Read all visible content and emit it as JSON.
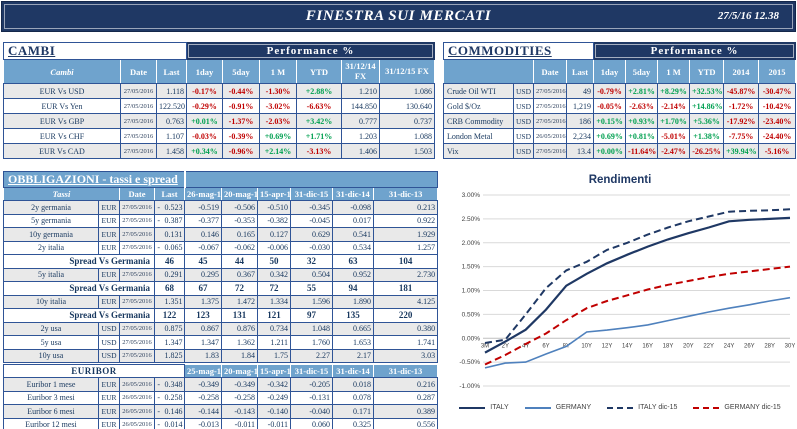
{
  "page": {
    "title": "FINESTRA SUI MERCATI",
    "datetime": "27/5/16 12.38"
  },
  "colors": {
    "navy": "#1F3864",
    "header_blue": "#6FA3CD",
    "positive": "#00A050",
    "negative": "#C00000",
    "row_alt": "#E9E9E9",
    "italy_line": "#1F3864",
    "germany_line": "#4F81BD",
    "italy_dic15_line": "#1F3864",
    "germany_dic15_line": "#C00000",
    "grid": "#D9D9D9"
  },
  "cambi": {
    "title": "CAMBI",
    "performance_label": "Performance %",
    "columns": [
      "Cambi",
      "Date",
      "Last",
      "1day",
      "5day",
      "1 M",
      "YTD",
      "31/12/14 FX",
      "31/12/15  FX"
    ],
    "rows": [
      {
        "name": "EUR Vs USD",
        "date": "27/05/2016",
        "last": "1.118",
        "perf": [
          "-0.17%",
          "-0.44%",
          "-1.30%",
          "+2.88%"
        ],
        "fx": [
          "1.210",
          "1.086"
        ]
      },
      {
        "name": "EUR Vs Yen",
        "date": "27/05/2016",
        "last": "122.520",
        "perf": [
          "-0.29%",
          "-0.91%",
          "-3.02%",
          "-6.63%"
        ],
        "fx": [
          "144.850",
          "130.640"
        ]
      },
      {
        "name": "EUR Vs GBP",
        "date": "27/05/2016",
        "last": "0.763",
        "perf": [
          "+0.01%",
          "-1.37%",
          "-2.03%",
          "+3.42%"
        ],
        "fx": [
          "0.777",
          "0.737"
        ]
      },
      {
        "name": "EUR Vs CHF",
        "date": "27/05/2016",
        "last": "1.107",
        "perf": [
          "-0.03%",
          "-0.39%",
          "+0.69%",
          "+1.71%"
        ],
        "fx": [
          "1.203",
          "1.088"
        ]
      },
      {
        "name": "EUR Vs CAD",
        "date": "27/05/2016",
        "last": "1.458",
        "perf": [
          "+0.34%",
          "-0.96%",
          "+2.14%",
          "-3.13%"
        ],
        "fx": [
          "1.406",
          "1.503"
        ]
      }
    ]
  },
  "commodities": {
    "title": "COMMODITIES",
    "performance_label": "Performance %",
    "columns": [
      "",
      "Date",
      "Last",
      "1day",
      "5day",
      "1 M",
      "YTD",
      "2014",
      "2015"
    ],
    "rows": [
      {
        "name": "Crude Oil WTI",
        "ccy": "USD",
        "date": "27/05/2016",
        "last": "49",
        "perf": [
          "-0.79%",
          "+2.81%",
          "+8.29%",
          "+32.53%"
        ],
        "years": [
          "-45.87%",
          "-30.47%"
        ]
      },
      {
        "name": "Gold $/Oz",
        "ccy": "USD",
        "date": "27/05/2016",
        "last": "1,219",
        "perf": [
          "-0.05%",
          "-2.63%",
          "-2.14%",
          "+14.86%"
        ],
        "years": [
          "-1.72%",
          "-10.42%"
        ]
      },
      {
        "name": "CRB Commodity",
        "ccy": "USD",
        "date": "27/05/2016",
        "last": "186",
        "perf": [
          "+0.15%",
          "+0.93%",
          "+1.70%",
          "+5.36%"
        ],
        "years": [
          "-17.92%",
          "-23.40%"
        ]
      },
      {
        "name": "London Metal",
        "ccy": "USD",
        "date": "26/05/2016",
        "last": "2,234",
        "perf": [
          "+0.69%",
          "+0.81%",
          "-5.01%",
          "+1.38%"
        ],
        "years": [
          "-7.75%",
          "-24.40%"
        ]
      },
      {
        "name": "Vix",
        "ccy": "USD",
        "date": "27/05/2016",
        "last": "13.4",
        "perf": [
          "+0.00%",
          "-11.64%",
          "-2.47%",
          "-26.25%"
        ],
        "years": [
          "+39.94%",
          "-5.16%"
        ]
      }
    ]
  },
  "obbligazioni": {
    "title": "OBBLIGAZIONI - tassi e spread",
    "columns": [
      "Tassi",
      "Date",
      "Last",
      "26-mag-16",
      "20-mag-16",
      "15-apr-16",
      "31-dic-15",
      "31-dic-14",
      "31-dic-13"
    ],
    "rows": [
      {
        "type": "data",
        "shade": "g",
        "name": "2y germania",
        "ccy": "EUR",
        "date": "27/05/2016",
        "neg": "-",
        "last": "0.523",
        "vals": [
          "-0.519",
          "-0.506",
          "-0.510",
          "-0.345",
          "-0.098",
          "0.213"
        ]
      },
      {
        "type": "data",
        "shade": "w",
        "name": "5y germania",
        "ccy": "EUR",
        "date": "27/05/2016",
        "neg": "-",
        "last": "0.387",
        "vals": [
          "-0.377",
          "-0.353",
          "-0.382",
          "-0.045",
          "0.017",
          "0.922"
        ]
      },
      {
        "type": "data",
        "shade": "g",
        "name": "10y germania",
        "ccy": "EUR",
        "date": "27/05/2016",
        "neg": "",
        "last": "0.131",
        "vals": [
          "0.146",
          "0.165",
          "0.127",
          "0.629",
          "0.541",
          "1.929"
        ]
      },
      {
        "type": "data",
        "shade": "w",
        "name": "2y italia",
        "ccy": "EUR",
        "date": "27/05/2016",
        "neg": "-",
        "last": "0.065",
        "vals": [
          "-0.067",
          "-0.062",
          "-0.006",
          "-0.030",
          "0.534",
          "1.257"
        ]
      },
      {
        "type": "spread",
        "shade": "w",
        "name": "Spread Vs Germania",
        "last": "46",
        "vals": [
          "45",
          "44",
          "50",
          "32",
          "63",
          "104"
        ]
      },
      {
        "type": "data",
        "shade": "g",
        "name": "5y italia",
        "ccy": "EUR",
        "date": "27/05/2016",
        "neg": "",
        "last": "0.291",
        "vals": [
          "0.295",
          "0.367",
          "0.342",
          "0.504",
          "0.952",
          "2.730"
        ]
      },
      {
        "type": "spread",
        "shade": "w",
        "name": "Spread Vs Germania",
        "last": "68",
        "vals": [
          "67",
          "72",
          "72",
          "55",
          "94",
          "181"
        ]
      },
      {
        "type": "data",
        "shade": "g",
        "name": "10y italia",
        "ccy": "EUR",
        "date": "27/05/2016",
        "neg": "",
        "last": "1.351",
        "vals": [
          "1.375",
          "1.472",
          "1.334",
          "1.596",
          "1.890",
          "4.125"
        ]
      },
      {
        "type": "spread",
        "shade": "w",
        "name": "Spread Vs Germania",
        "last": "122",
        "vals": [
          "123",
          "131",
          "121",
          "97",
          "135",
          "220"
        ]
      },
      {
        "type": "data",
        "shade": "g",
        "name": "2y usa",
        "ccy": "USD",
        "date": "27/05/2016",
        "neg": "",
        "last": "0.875",
        "vals": [
          "0.867",
          "0.876",
          "0.734",
          "1.048",
          "0.665",
          "0.380"
        ]
      },
      {
        "type": "data",
        "shade": "w",
        "name": "5y usa",
        "ccy": "USD",
        "date": "27/05/2016",
        "neg": "",
        "last": "1.347",
        "vals": [
          "1.347",
          "1.362",
          "1.211",
          "1.760",
          "1.653",
          "1.741"
        ]
      },
      {
        "type": "data",
        "shade": "g",
        "name": "10y usa",
        "ccy": "USD",
        "date": "27/05/2016",
        "neg": "",
        "last": "1.825",
        "vals": [
          "1.83",
          "1.84",
          "1.75",
          "2.27",
          "2.17",
          "3.03"
        ]
      }
    ]
  },
  "euribor": {
    "label": "EURIBOR",
    "columns": [
      "25-mag-16",
      "20-mag-16",
      "15-apr-16",
      "31-dic-15",
      "31-dic-14",
      "31-dic-13"
    ],
    "rows": [
      {
        "shade": "g",
        "name": "Euribor 1 mese",
        "ccy": "EUR",
        "date": "26/05/2016",
        "neg": "-",
        "last": "0.348",
        "vals": [
          "-0.349",
          "-0.349",
          "-0.342",
          "-0.205",
          "0.018",
          "0.216"
        ]
      },
      {
        "shade": "w",
        "name": "Euribor 3 mesi",
        "ccy": "EUR",
        "date": "26/05/2016",
        "neg": "-",
        "last": "0.258",
        "vals": [
          "-0.258",
          "-0.258",
          "-0.249",
          "-0.131",
          "0.078",
          "0.287"
        ]
      },
      {
        "shade": "g",
        "name": "Euribor 6 mesi",
        "ccy": "EUR",
        "date": "26/05/2016",
        "neg": "-",
        "last": "0.146",
        "vals": [
          "-0.144",
          "-0.143",
          "-0.140",
          "-0.040",
          "0.171",
          "0.389"
        ]
      },
      {
        "shade": "w",
        "name": "Euribor 12 mesi",
        "ccy": "EUR",
        "date": "26/05/2016",
        "neg": "-",
        "last": "0.014",
        "vals": [
          "-0.013",
          "-0.011",
          "-0.011",
          "0.060",
          "0.325",
          "0.556"
        ]
      }
    ]
  },
  "chart_data": {
    "type": "line",
    "title": "Rendimenti",
    "x": [
      "3M",
      "2Y",
      "4Y",
      "6Y",
      "8Y",
      "10Y",
      "12Y",
      "14Y",
      "16Y",
      "18Y",
      "20Y",
      "22Y",
      "24Y",
      "26Y",
      "28Y",
      "30Y"
    ],
    "ylim": [
      -1.0,
      3.0
    ],
    "ytick_step": 0.5,
    "ylabel_format": "percent_2dp",
    "grid": true,
    "legend_position": "bottom",
    "series": [
      {
        "name": "ITALY",
        "style": "solid",
        "color": "#1F3864",
        "width": 2.2,
        "values": [
          -0.3,
          -0.07,
          0.18,
          0.6,
          1.1,
          1.35,
          1.57,
          1.75,
          1.92,
          2.07,
          2.2,
          2.32,
          2.45,
          2.48,
          2.5,
          2.52
        ]
      },
      {
        "name": "GERMANY",
        "style": "solid",
        "color": "#4F81BD",
        "width": 1.6,
        "values": [
          -0.62,
          -0.52,
          -0.5,
          -0.33,
          -0.17,
          0.13,
          0.17,
          0.22,
          0.28,
          0.37,
          0.46,
          0.55,
          0.63,
          0.7,
          0.78,
          0.85
        ]
      },
      {
        "name": "ITALY dic-15",
        "style": "dashed",
        "color": "#1F3864",
        "width": 2.0,
        "values": [
          -0.1,
          -0.03,
          0.5,
          1.05,
          1.42,
          1.6,
          1.85,
          2.0,
          2.17,
          2.32,
          2.45,
          2.55,
          2.65,
          2.67,
          2.68,
          2.7
        ]
      },
      {
        "name": "GERMANY dic-15",
        "style": "dashed",
        "color": "#C00000",
        "width": 2.0,
        "values": [
          -0.55,
          -0.35,
          -0.12,
          0.1,
          0.38,
          0.63,
          0.78,
          0.9,
          1.02,
          1.12,
          1.2,
          1.28,
          1.35,
          1.4,
          1.45,
          1.5
        ]
      }
    ]
  }
}
